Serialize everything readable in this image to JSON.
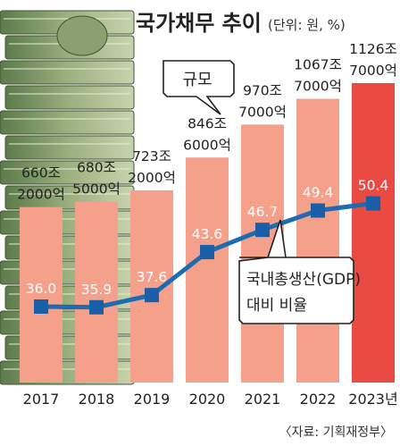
{
  "title": "국가채무 추이",
  "unit": "(단위: 원, %)",
  "source": "〈자료: 기획재정부〉",
  "callout_scale": "규모",
  "callout_gdp_line1": "국내총생산(GDP)",
  "callout_gdp_line2": "대비 비율",
  "colors": {
    "bar": "#f4a08a",
    "bar_last": "#e94b43",
    "line": "#1d6bb3",
    "marker": "#1a5ea8",
    "bar_label": "#ffffff",
    "text": "#222222"
  },
  "chart_data": {
    "type": "bar",
    "categories": [
      "2017",
      "2018",
      "2019",
      "2020",
      "2021",
      "2022",
      "2023년"
    ],
    "series": [
      {
        "name": "규모",
        "values": [
          660.2,
          680.5,
          723.2,
          846.6,
          970.7,
          1067.7,
          1126.7
        ],
        "labels": [
          [
            "660조",
            "2000억"
          ],
          [
            "680조",
            "5000억"
          ],
          [
            "723조",
            "2000억"
          ],
          [
            "846조",
            "6000억"
          ],
          [
            "970조",
            "7000억"
          ],
          [
            "1067조",
            "7000억"
          ],
          [
            "1126조",
            "7000억"
          ]
        ]
      },
      {
        "name": "국내총생산(GDP) 대비 비율",
        "type": "line",
        "values": [
          36.0,
          35.9,
          37.6,
          43.6,
          46.7,
          49.4,
          50.4
        ],
        "labels": [
          "36.0",
          "35.9",
          "37.6",
          "43.6",
          "46.7",
          "49.4",
          "50.4"
        ]
      }
    ],
    "xlabel": "",
    "ylabel": "",
    "grid": false,
    "legend": "none"
  }
}
